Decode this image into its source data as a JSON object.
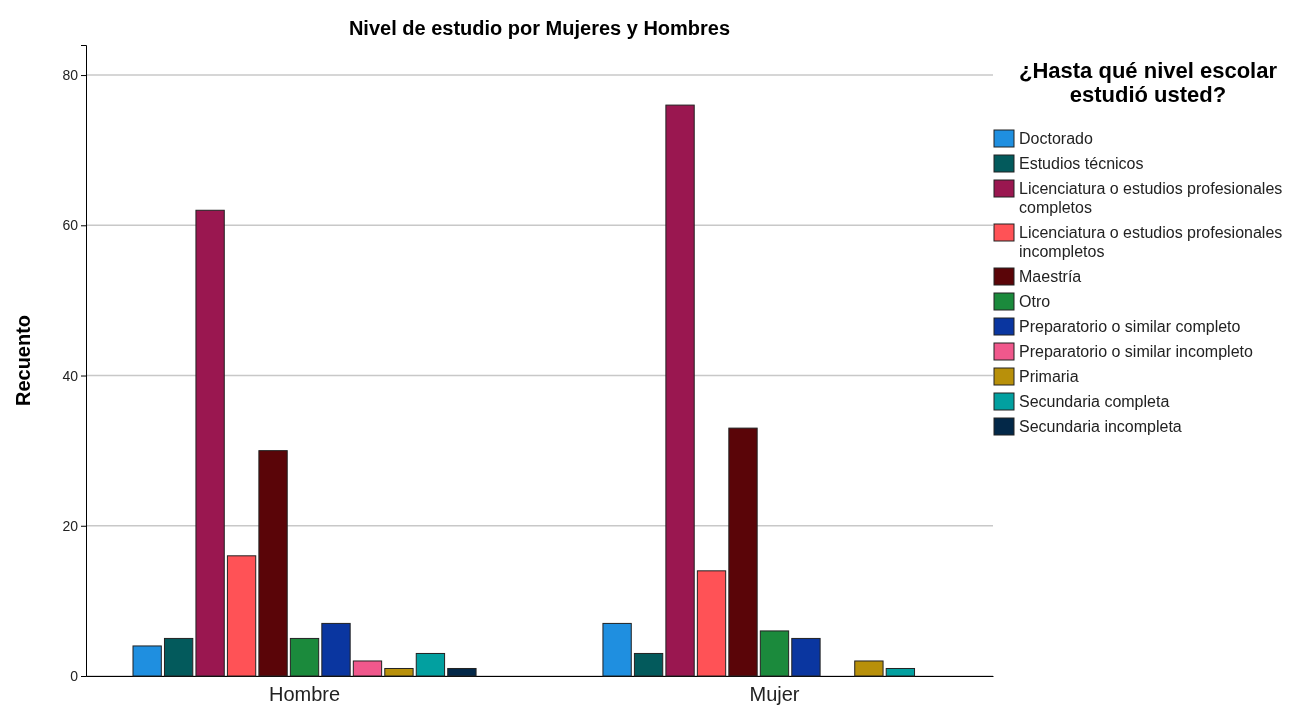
{
  "chart_data": {
    "type": "bar",
    "title": "Nivel de estudio por Mujeres y Hombres",
    "ylabel": "Recuento",
    "legend_title": "¿Hasta qué nivel escolar estudió usted?",
    "categories": [
      "Hombre",
      "Mujer"
    ],
    "ylim": [
      0,
      84
    ],
    "yticks": [
      0,
      20,
      40,
      60,
      80
    ],
    "grid": "y",
    "legend": "right",
    "series": [
      {
        "name": "Doctorado",
        "color": "#1f8fe0",
        "values": [
          4,
          7
        ]
      },
      {
        "name": "Estudios técnicos",
        "color": "#035a5c",
        "values": [
          5,
          3
        ]
      },
      {
        "name": "Licenciatura o estudios profesionales completos",
        "color": "#9a1750",
        "values": [
          62,
          76
        ]
      },
      {
        "name": "Licenciatura o estudios profesionales incompletos",
        "color": "#ff5256",
        "values": [
          16,
          14
        ]
      },
      {
        "name": "Maestría",
        "color": "#5a0508",
        "values": [
          30,
          33
        ]
      },
      {
        "name": "Otro",
        "color": "#1b8a3c",
        "values": [
          5,
          6
        ]
      },
      {
        "name": "Preparatorio o similar completo",
        "color": "#0a36a0",
        "values": [
          7,
          5
        ]
      },
      {
        "name": "Preparatorio o similar incompleto",
        "color": "#f0588c",
        "values": [
          2,
          null
        ]
      },
      {
        "name": "Primaria",
        "color": "#b8900a",
        "values": [
          1,
          2
        ]
      },
      {
        "name": "Secundaria completa",
        "color": "#02a0a0",
        "values": [
          3,
          1
        ]
      },
      {
        "name": "Secundaria incompleta",
        "color": "#032848",
        "values": [
          1,
          null
        ]
      }
    ]
  }
}
